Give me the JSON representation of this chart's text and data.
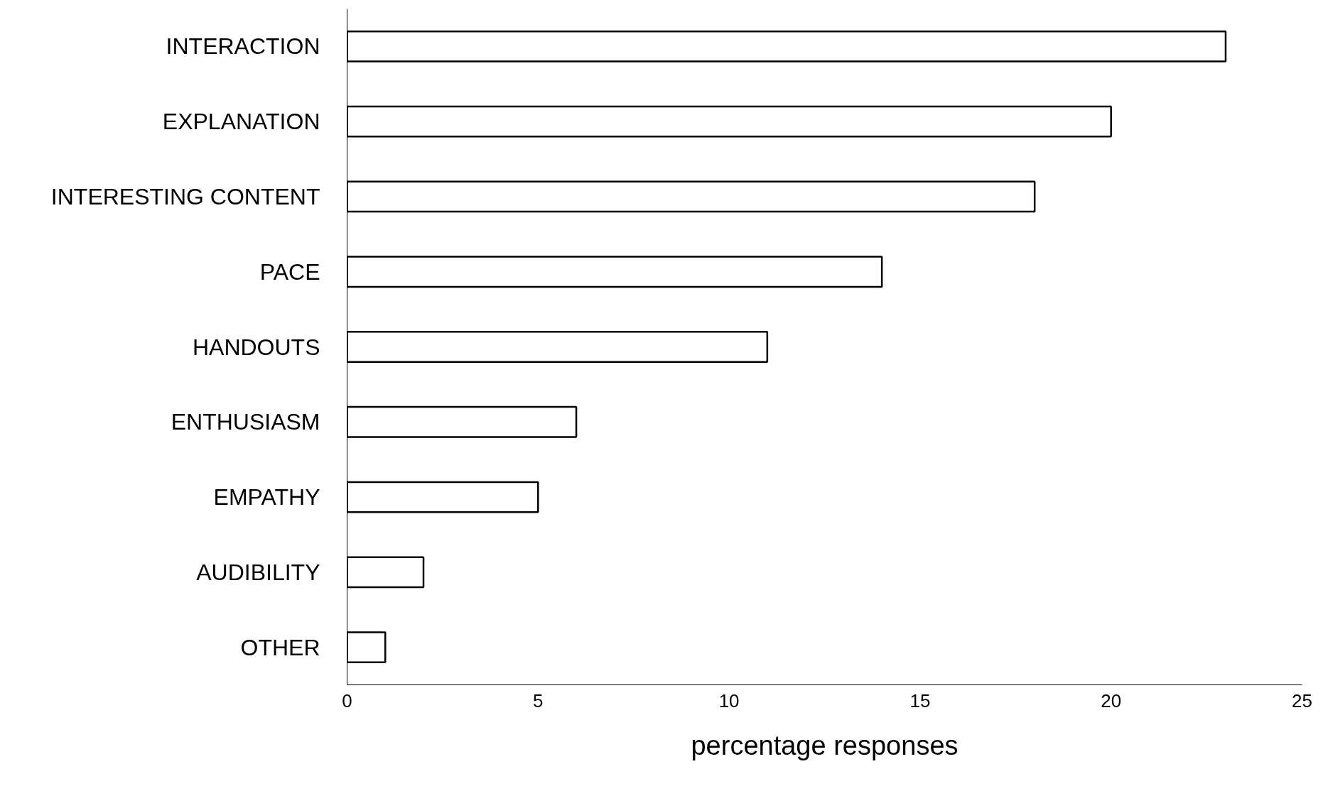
{
  "chart_data": {
    "type": "bar",
    "orientation": "horizontal",
    "xlabel": "percentage responses",
    "categories": [
      "INTERACTION",
      "EXPLANATION",
      "INTERESTING CONTENT",
      "PACE",
      "HANDOUTS",
      "ENTHUSIASM",
      "EMPATHY",
      "AUDIBILITY",
      "OTHER"
    ],
    "values": [
      23,
      20,
      18,
      14,
      11,
      6,
      5,
      2,
      1
    ],
    "color": "#ffffff",
    "xlim": [
      0,
      25
    ],
    "xticks": [
      0,
      5,
      10,
      15,
      20,
      25
    ],
    "grid": false
  }
}
